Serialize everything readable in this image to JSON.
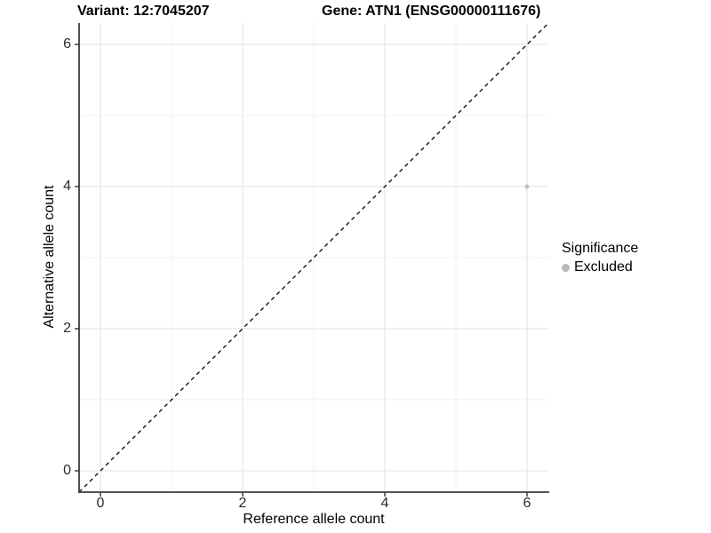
{
  "titles": {
    "variant": "Variant: 12:7045207",
    "gene": "Gene: ATN1 (ENSG00000111676)"
  },
  "legend": {
    "title": "Significance",
    "items": [
      {
        "label": "Excluded",
        "color": "#b9b9b9"
      }
    ]
  },
  "chart_data": {
    "type": "scatter",
    "title_left": "Variant: 12:7045207",
    "title_right": "Gene: ATN1 (ENSG00000111676)",
    "xlabel": "Reference allele count",
    "ylabel": "Alternative allele count",
    "xlim": [
      -0.3,
      6.3
    ],
    "ylim": [
      -0.3,
      6.3
    ],
    "x_ticks": [
      0,
      2,
      4,
      6
    ],
    "y_ticks": [
      0,
      2,
      4,
      6
    ],
    "x_minor_ticks": [
      1,
      3,
      5
    ],
    "y_minor_ticks": [
      1,
      3,
      5
    ],
    "grid": true,
    "legend_position": "right",
    "identity_line": {
      "style": "dashed",
      "color": "#000000",
      "from": [
        -0.3,
        -0.3
      ],
      "to": [
        6.3,
        6.3
      ]
    },
    "series": [
      {
        "name": "Excluded",
        "color": "#bdbdbd",
        "points": [
          [
            6,
            4
          ]
        ]
      }
    ],
    "colors": {
      "grid_major": "#e6e6e6",
      "grid_minor": "#f2f2f2",
      "axis_line": "#3c3c3c",
      "tick_mark": "#333333"
    }
  }
}
